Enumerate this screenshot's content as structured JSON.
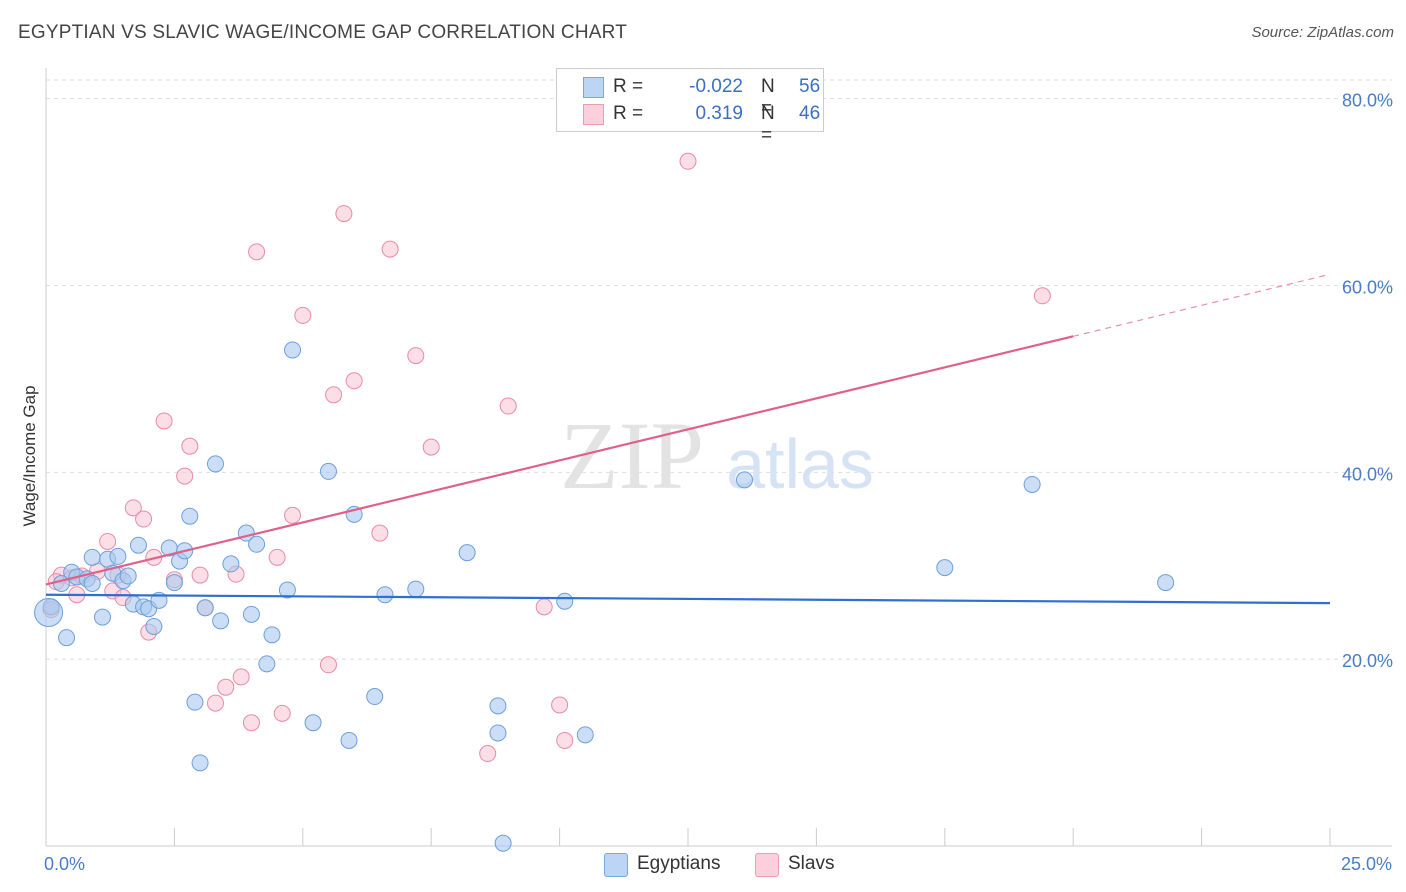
{
  "header": {
    "title": "EGYPTIAN VS SLAVIC WAGE/INCOME GAP CORRELATION CHART",
    "source": "Source: ZipAtlas.com"
  },
  "legend": {
    "rows": [
      {
        "r_label": "R =",
        "r_value": "-0.022",
        "n_label": "N =",
        "n_value": "56"
      },
      {
        "r_label": "R =",
        "r_value": "0.319",
        "n_label": "N =",
        "n_value": "46"
      }
    ]
  },
  "bottom_legend": [
    "Egyptians",
    "Slavs"
  ],
  "watermark": {
    "zip": "ZIP",
    "atlas": "atlas"
  },
  "colors": {
    "egyptians_fill": "#aac8ef",
    "egyptians_stroke": "#6c9fdc",
    "egyptians_line": "#2f6fd0",
    "slavs_fill": "#f7c3d2",
    "slavs_stroke": "#e98aa8",
    "slavs_line": "#e0608a",
    "tick": "#4a7cc7",
    "grid": "#dddddd"
  },
  "chart_data": {
    "type": "scatter",
    "title": "EGYPTIAN VS SLAVIC WAGE/INCOME GAP CORRELATION CHART",
    "xlabel": "",
    "ylabel": "Wage/Income Gap",
    "xlim": [
      0,
      25
    ],
    "ylim": [
      0,
      82
    ],
    "x_tick_labels": [
      {
        "value": 0,
        "label": "0.0%"
      },
      {
        "value": 25,
        "label": "25.0%"
      }
    ],
    "y_tick_labels": [
      {
        "value": 20,
        "label": "20.0%"
      },
      {
        "value": 40,
        "label": "40.0%"
      },
      {
        "value": 60,
        "label": "60.0%"
      },
      {
        "value": 80,
        "label": "80.0%"
      }
    ],
    "series": [
      {
        "name": "Egyptians",
        "r": -0.022,
        "n": 56,
        "trend": {
          "x": [
            0,
            25
          ],
          "y": [
            26.9,
            26.0
          ],
          "dashed_from": null
        },
        "points": [
          [
            0.1,
            25.6
          ],
          [
            0.3,
            28.1
          ],
          [
            0.4,
            22.3
          ],
          [
            0.5,
            29.3
          ],
          [
            0.6,
            28.8
          ],
          [
            0.8,
            28.6
          ],
          [
            0.9,
            28.1
          ],
          [
            0.9,
            30.9
          ],
          [
            1.1,
            24.5
          ],
          [
            1.2,
            30.7
          ],
          [
            1.3,
            29.2
          ],
          [
            1.4,
            31.0
          ],
          [
            1.5,
            28.4
          ],
          [
            1.6,
            28.9
          ],
          [
            1.7,
            25.9
          ],
          [
            1.8,
            32.2
          ],
          [
            1.9,
            25.6
          ],
          [
            2.0,
            25.4
          ],
          [
            2.1,
            23.5
          ],
          [
            2.2,
            26.3
          ],
          [
            2.4,
            31.9
          ],
          [
            2.5,
            28.2
          ],
          [
            2.6,
            30.5
          ],
          [
            2.7,
            31.6
          ],
          [
            2.8,
            35.3
          ],
          [
            2.9,
            15.4
          ],
          [
            3.0,
            8.9
          ],
          [
            3.1,
            25.5
          ],
          [
            3.3,
            40.9
          ],
          [
            3.4,
            24.1
          ],
          [
            3.6,
            30.2
          ],
          [
            3.9,
            33.5
          ],
          [
            4.0,
            24.8
          ],
          [
            4.1,
            32.3
          ],
          [
            4.3,
            19.5
          ],
          [
            4.4,
            22.6
          ],
          [
            4.7,
            27.4
          ],
          [
            4.8,
            53.1
          ],
          [
            5.2,
            13.2
          ],
          [
            5.5,
            40.1
          ],
          [
            5.9,
            11.3
          ],
          [
            6.0,
            35.5
          ],
          [
            6.4,
            16.0
          ],
          [
            6.6,
            26.9
          ],
          [
            7.2,
            27.5
          ],
          [
            8.2,
            31.4
          ],
          [
            8.8,
            15.0
          ],
          [
            8.8,
            12.1
          ],
          [
            8.9,
            0.3
          ],
          [
            10.1,
            26.2
          ],
          [
            10.5,
            11.9
          ],
          [
            13.6,
            39.2
          ],
          [
            17.5,
            29.8
          ],
          [
            19.2,
            38.7
          ],
          [
            21.8,
            28.2
          ],
          [
            0.05,
            25.0
          ]
        ]
      },
      {
        "name": "Slavs",
        "r": 0.319,
        "n": 46,
        "trend": {
          "x": [
            0,
            25
          ],
          "y": [
            28.0,
            61.2
          ],
          "dashed_from": 20
        },
        "points": [
          [
            0.1,
            25.3
          ],
          [
            0.3,
            29.0
          ],
          [
            0.5,
            28.7
          ],
          [
            0.7,
            28.9
          ],
          [
            1.0,
            29.4
          ],
          [
            1.2,
            32.6
          ],
          [
            1.3,
            27.3
          ],
          [
            1.5,
            26.6
          ],
          [
            1.7,
            36.2
          ],
          [
            1.9,
            35.0
          ],
          [
            2.0,
            22.9
          ],
          [
            2.1,
            30.9
          ],
          [
            2.3,
            45.5
          ],
          [
            2.5,
            28.5
          ],
          [
            2.7,
            39.6
          ],
          [
            2.8,
            42.8
          ],
          [
            3.0,
            29.0
          ],
          [
            3.1,
            25.5
          ],
          [
            3.3,
            15.3
          ],
          [
            3.5,
            17.0
          ],
          [
            3.7,
            29.1
          ],
          [
            3.8,
            18.1
          ],
          [
            4.0,
            13.2
          ],
          [
            4.1,
            63.6
          ],
          [
            4.5,
            30.9
          ],
          [
            4.6,
            14.2
          ],
          [
            4.8,
            35.4
          ],
          [
            5.0,
            56.8
          ],
          [
            5.5,
            19.4
          ],
          [
            5.6,
            48.3
          ],
          [
            5.8,
            67.7
          ],
          [
            6.0,
            49.8
          ],
          [
            6.5,
            33.5
          ],
          [
            6.7,
            63.9
          ],
          [
            7.2,
            52.5
          ],
          [
            7.5,
            42.7
          ],
          [
            8.6,
            9.9
          ],
          [
            9.0,
            47.1
          ],
          [
            9.7,
            25.6
          ],
          [
            10.0,
            15.1
          ],
          [
            10.1,
            11.3
          ],
          [
            12.5,
            73.3
          ],
          [
            19.4,
            58.9
          ],
          [
            0.2,
            28.3
          ],
          [
            0.6,
            26.9
          ],
          [
            1.4,
            29.0
          ]
        ]
      }
    ]
  }
}
